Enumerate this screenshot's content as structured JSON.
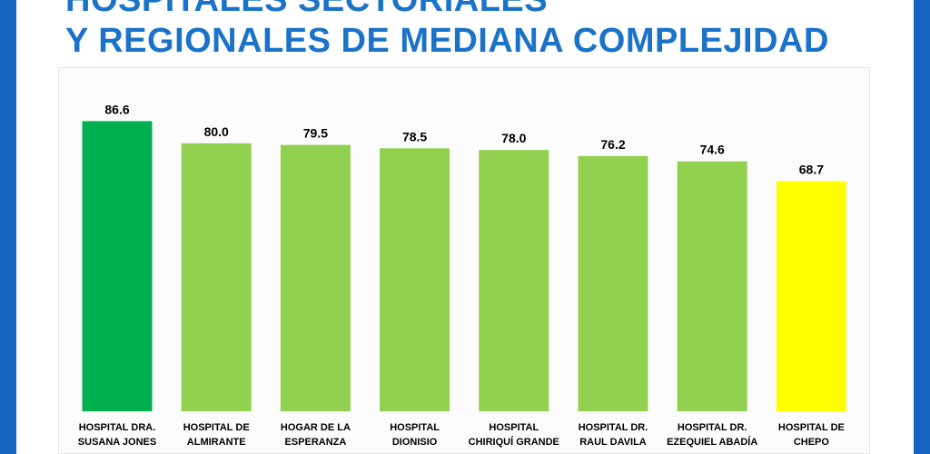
{
  "header": {
    "title_line1": "HOSPITALES SECTORIALES",
    "title_line2": "Y REGIONALES DE MEDIANA COMPLEJIDAD"
  },
  "colors": {
    "frame": "#1565c0",
    "title": "#1a73c8",
    "top_bar": "#00b050",
    "middle_bar": "#92d050",
    "bottom_bar": "#ffff00"
  },
  "chart_data": {
    "type": "bar",
    "title": "",
    "xlabel": "",
    "ylabel": "",
    "ylim": [
      0,
      100
    ],
    "grid": false,
    "legend": "none",
    "categories": [
      "HOSPITAL DRA. SUSANA JONES",
      "HOSPITAL DE ALMIRANTE",
      "HOGAR DE LA ESPERANZA",
      "HOSPITAL DIONISIO",
      "HOSPITAL CHIRIQUÍ GRANDE",
      "HOSPITAL DR. RAUL DAVILA",
      "HOSPITAL DR. EZEQUIEL ABADÍA",
      "HOSPITAL DE CHEPO"
    ],
    "category_lines": [
      [
        "HOSPITAL DRA.",
        "SUSANA JONES"
      ],
      [
        "HOSPITAL DE",
        "ALMIRANTE"
      ],
      [
        "HOGAR DE LA",
        "ESPERANZA"
      ],
      [
        "HOSPITAL",
        "DIONISIO"
      ],
      [
        "HOSPITAL",
        "CHIRIQUÍ GRANDE"
      ],
      [
        "HOSPITAL DR.",
        "RAUL DAVILA"
      ],
      [
        "HOSPITAL DR.",
        "EZEQUIEL ABADÍA"
      ],
      [
        "HOSPITAL DE",
        "CHEPO"
      ]
    ],
    "values": [
      86.6,
      80.0,
      79.5,
      78.5,
      78.0,
      76.2,
      74.6,
      68.7
    ],
    "value_labels": [
      "86.6",
      "80.0",
      "79.5",
      "78.5",
      "78.0",
      "76.2",
      "74.6",
      "68.7"
    ],
    "bar_colors": [
      "#00b050",
      "#92d050",
      "#92d050",
      "#92d050",
      "#92d050",
      "#92d050",
      "#92d050",
      "#ffff00"
    ]
  }
}
